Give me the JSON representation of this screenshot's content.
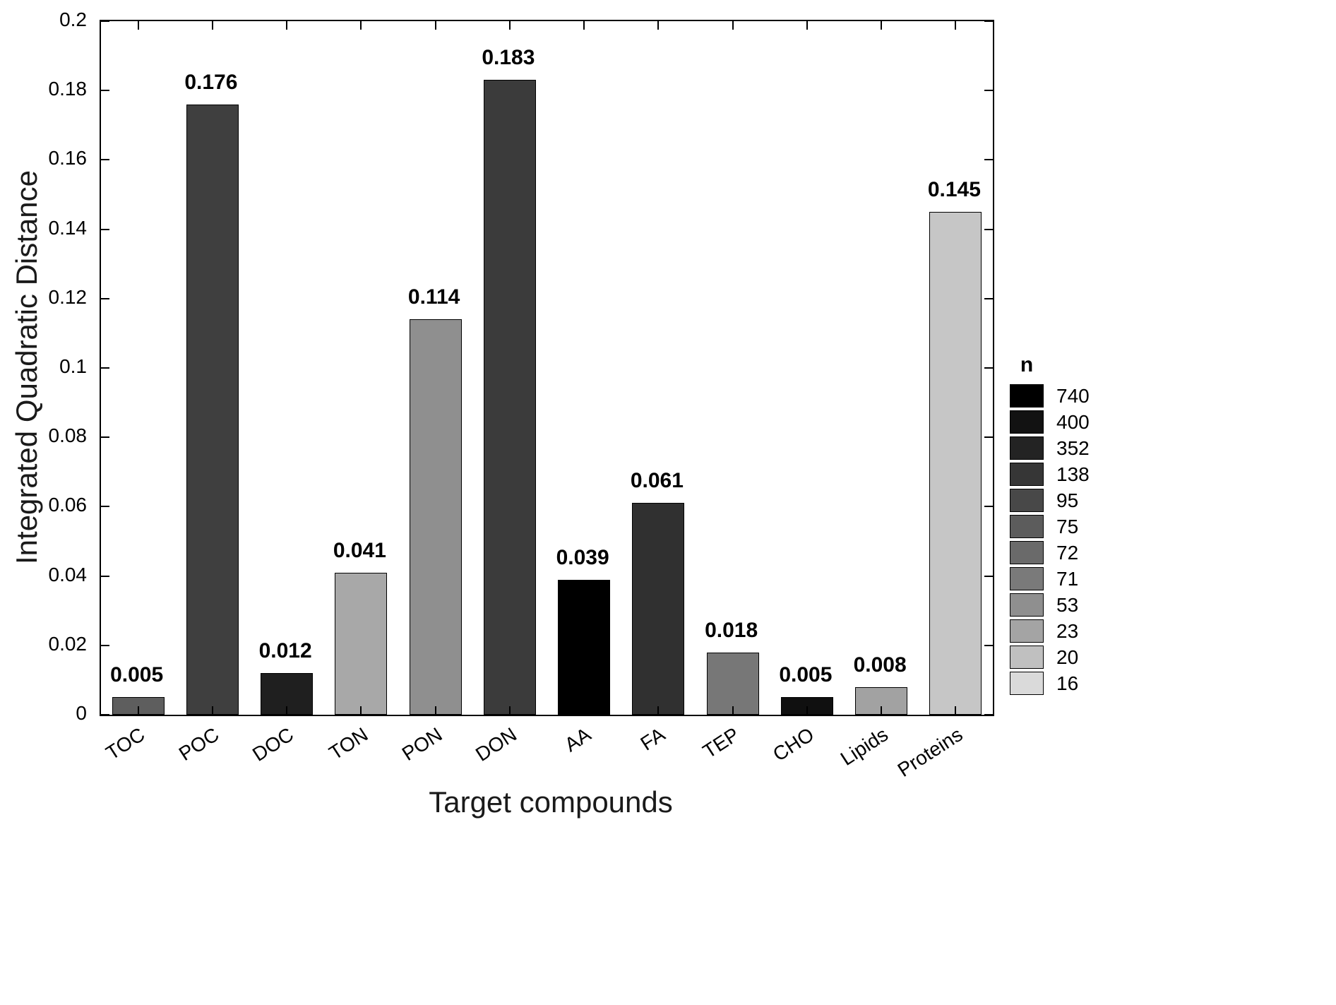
{
  "chart_data": {
    "type": "bar",
    "title": "",
    "xlabel": "Target compounds",
    "ylabel": "Integrated Quadratic Distance",
    "ylim": [
      0,
      0.2
    ],
    "grid": false,
    "yticks": [
      0,
      0.02,
      0.04,
      0.06,
      0.08,
      0.1,
      0.12,
      0.14,
      0.16,
      0.18,
      0.2
    ],
    "ytick_labels": [
      "0",
      "0.02",
      "0.04",
      "0.06",
      "0.08",
      "0.1",
      "0.12",
      "0.14",
      "0.16",
      "0.18",
      "0.2"
    ],
    "categories": [
      "TOC",
      "POC",
      "DOC",
      "TON",
      "PON",
      "DON",
      "AA",
      "FA",
      "TEP",
      "CHO",
      "Lipids",
      "Proteins"
    ],
    "values": [
      0.005,
      0.176,
      0.012,
      0.041,
      0.114,
      0.183,
      0.039,
      0.061,
      0.018,
      0.005,
      0.008,
      0.145
    ],
    "value_labels": [
      "0.005",
      "0.176",
      "0.012",
      "0.041",
      "0.114",
      "0.183",
      "0.039",
      "0.061",
      "0.018",
      "0.005",
      "0.008",
      "0.145"
    ],
    "bar_colors": [
      "#5e5e5e",
      "#3f3f3f",
      "#1f1f1f",
      "#a8a8a8",
      "#8f8f8f",
      "#3b3b3b",
      "#000000",
      "#303030",
      "#777777",
      "#101010",
      "#a2a2a2",
      "#c6c6c6"
    ],
    "bar_edge_color": "#000000",
    "legend": {
      "title": "n",
      "position": "right",
      "entries": [
        {
          "label": "740",
          "color": "#000000"
        },
        {
          "label": "400",
          "color": "#121212"
        },
        {
          "label": "352",
          "color": "#232323"
        },
        {
          "label": "138",
          "color": "#363636"
        },
        {
          "label": "95",
          "color": "#484848"
        },
        {
          "label": "75",
          "color": "#5c5c5c"
        },
        {
          "label": "72",
          "color": "#6a6a6a"
        },
        {
          "label": "71",
          "color": "#7a7a7a"
        },
        {
          "label": "53",
          "color": "#8f8f8f"
        },
        {
          "label": "23",
          "color": "#a4a4a4"
        },
        {
          "label": "20",
          "color": "#c0c0c0"
        },
        {
          "label": "16",
          "color": "#dadada"
        }
      ]
    }
  }
}
